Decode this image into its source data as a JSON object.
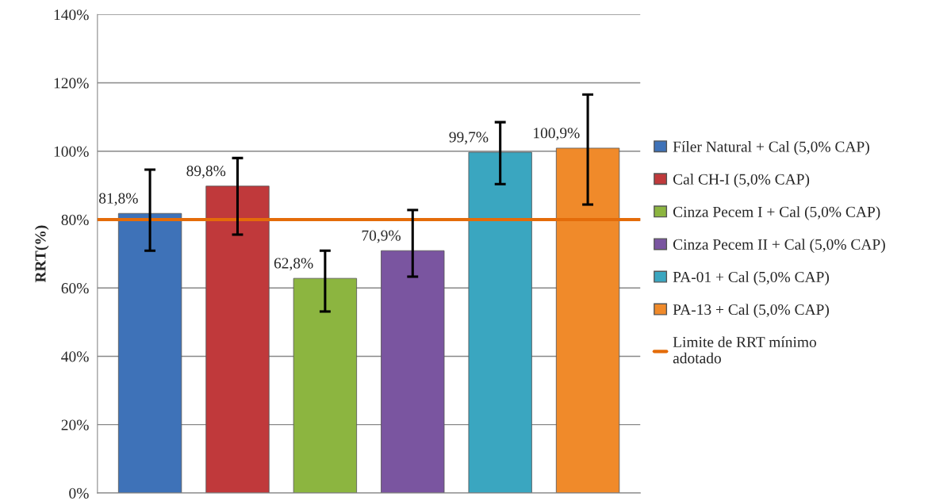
{
  "chart_data": {
    "type": "bar",
    "ylabel": "RRT(%)",
    "categories": [
      null,
      null,
      null,
      null,
      null,
      null
    ],
    "series": [
      {
        "name": "Fíler Natural + Cal (5,0% CAP)",
        "color": "#3e72b8",
        "values": [
          81.8,
          null,
          null,
          null,
          null,
          null
        ],
        "value_labels": [
          "81,8%",
          null,
          null,
          null,
          null,
          null
        ],
        "errors": [
          [
            70.9,
            94.6
          ],
          null,
          null,
          null,
          null,
          null
        ]
      },
      {
        "name": "Cal CH-I (5,0% CAP)",
        "color": "#c0393b",
        "values": [
          null,
          89.8,
          null,
          null,
          null,
          null
        ],
        "value_labels": [
          null,
          "89,8%",
          null,
          null,
          null,
          null
        ],
        "errors": [
          null,
          [
            75.6,
            98.0
          ],
          null,
          null,
          null,
          null
        ]
      },
      {
        "name": "Cinza Pecem I + Cal (5,0% CAP)",
        "color": "#8cb540",
        "values": [
          null,
          null,
          62.8,
          null,
          null,
          null
        ],
        "value_labels": [
          null,
          null,
          "62,8%",
          null,
          null,
          null
        ],
        "errors": [
          null,
          null,
          [
            53.1,
            70.9
          ],
          null,
          null,
          null
        ]
      },
      {
        "name": "Cinza Pecem II + Cal (5,0% CAP)",
        "color": "#7a55a0",
        "values": [
          null,
          null,
          null,
          70.9,
          null,
          null
        ],
        "value_labels": [
          null,
          null,
          null,
          "70,9%",
          null,
          null
        ],
        "errors": [
          null,
          null,
          null,
          [
            63.3,
            82.8
          ],
          null,
          null
        ]
      },
      {
        "name": "PA-01 + Cal (5,0% CAP)",
        "color": "#3aa6c0",
        "values": [
          null,
          null,
          null,
          null,
          99.7,
          null
        ],
        "value_labels": [
          null,
          null,
          null,
          null,
          "99,7%",
          null
        ],
        "errors": [
          null,
          null,
          null,
          null,
          [
            90.4,
            108.5
          ],
          null
        ]
      },
      {
        "name": "PA-13 + Cal (5,0% CAP)",
        "color": "#f08a2a",
        "values": [
          null,
          null,
          null,
          null,
          null,
          100.9
        ],
        "value_labels": [
          null,
          null,
          null,
          null,
          null,
          "100,9%"
        ],
        "errors": [
          null,
          null,
          null,
          null,
          null,
          [
            84.4,
            116.6
          ]
        ]
      }
    ],
    "ref_lines": [
      {
        "axis": "y",
        "value": 80,
        "label": "Limite de RRT mínimo adotado",
        "color": "#e46c0a",
        "line_style": "solid"
      }
    ],
    "ylim": [
      0,
      140
    ],
    "yticks": [
      {
        "value": 0,
        "label": "0%"
      },
      {
        "value": 20,
        "label": "20%"
      },
      {
        "value": 40,
        "label": "40%"
      },
      {
        "value": 60,
        "label": "60%"
      },
      {
        "value": 80,
        "label": "80%"
      },
      {
        "value": 100,
        "label": "100%"
      },
      {
        "value": 120,
        "label": "120%"
      },
      {
        "value": 140,
        "label": "140%"
      }
    ],
    "grid": "y",
    "legend": "right"
  }
}
